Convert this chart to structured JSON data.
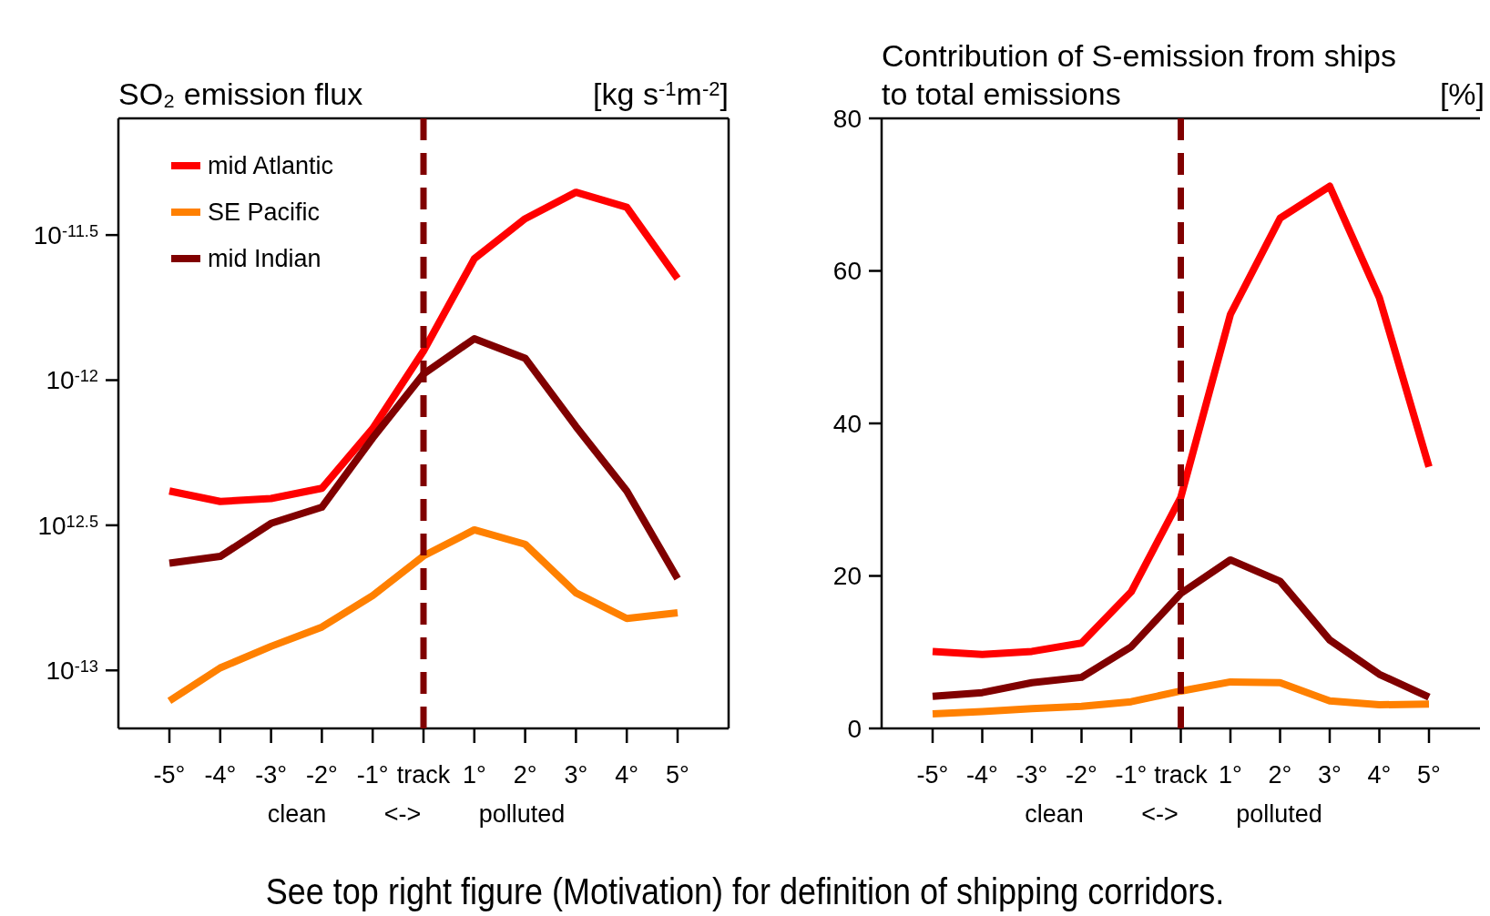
{
  "chart_data": [
    {
      "type": "line",
      "title": "SO₂ emission flux",
      "ylabel": "[kg s$^{-1}$m$^{-2}$]",
      "xlabel": "clean <-> polluted",
      "categories": [
        "-5°",
        "-4°",
        "-3°",
        "-2°",
        "-1°",
        "track",
        "1°",
        "2°",
        "3°",
        "4°",
        "5°"
      ],
      "log": "y",
      "ylim": [
        6.31e-14,
        7.98e-12
      ],
      "yticks": [
        {
          "value": 3.1623e-12,
          "label": "10$^{-11.5}$"
        },
        {
          "value": 1e-12,
          "label": "10$^{-12}$"
        },
        {
          "value": 3.1623e-13,
          "label": "10$^{12.5}$"
        },
        {
          "value": 1e-13,
          "label": "10$^{-13}$"
        }
      ],
      "legend": "top left",
      "line_style": "solid",
      "marker": "none",
      "ref_lines": [
        {
          "axis": "x",
          "value": "track",
          "color": "#800000",
          "line_style": "dashed"
        }
      ],
      "series": [
        {
          "name": "mid Atlantic",
          "color": "#ff0000",
          "values": [
            4.15e-13,
            3.82e-13,
            3.91e-13,
            4.24e-13,
            6.81e-13,
            1.26e-12,
            2.62e-12,
            3.6e-12,
            4.44e-12,
            3.94e-12,
            2.24e-12
          ]
        },
        {
          "name": "SE Pacific",
          "color": "#ff8000",
          "values": [
            7.85e-14,
            1.02e-13,
            1.21e-13,
            1.41e-13,
            1.81e-13,
            2.48e-13,
            3.05e-13,
            2.72e-13,
            1.85e-13,
            1.51e-13,
            1.58e-13
          ]
        },
        {
          "name": "mid Indian",
          "color": "#800000",
          "values": [
            2.34e-13,
            2.47e-13,
            3.21e-13,
            3.65e-13,
            6.32e-13,
            1.05e-12,
            1.39e-12,
            1.19e-12,
            6.92e-13,
            4.15e-13,
            2.07e-13
          ]
        }
      ],
      "annotations": [
        "See top right figure (Motivation) for definition of shipping corridors."
      ]
    },
    {
      "type": "line",
      "title": "Contribution of S-emission from ships\nto total emissions",
      "ylabel": "[%]",
      "xlabel": "clean <-> polluted",
      "categories": [
        "-5°",
        "-4°",
        "-3°",
        "-2°",
        "-1°",
        "track",
        "1°",
        "2°",
        "3°",
        "4°",
        "5°"
      ],
      "ylim": [
        0,
        80
      ],
      "yticks": [
        0,
        20,
        40,
        60,
        80
      ],
      "line_style": "solid",
      "marker": "none",
      "ref_lines": [
        {
          "axis": "x",
          "value": "track",
          "color": "#800000",
          "line_style": "dashed"
        }
      ],
      "series": [
        {
          "color": "#ff0000",
          "values": [
            10.1,
            9.7,
            10.1,
            11.2,
            17.9,
            30.3,
            54.3,
            66.9,
            71.1,
            56.5,
            34.3
          ]
        },
        {
          "color": "#ff8000",
          "values": [
            1.9,
            2.2,
            2.6,
            2.9,
            3.5,
            4.9,
            6.1,
            6.0,
            3.6,
            3.1,
            3.2
          ]
        },
        {
          "color": "#800000",
          "values": [
            4.2,
            4.7,
            6.0,
            6.7,
            10.7,
            17.7,
            22.1,
            19.3,
            11.6,
            7.1,
            4.1
          ]
        }
      ]
    }
  ]
}
